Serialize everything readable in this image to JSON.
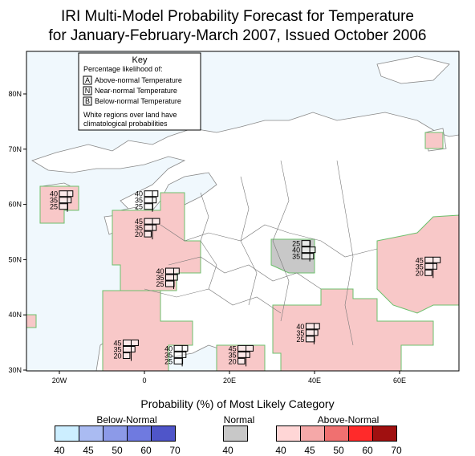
{
  "title_line1": "IRI Multi-Model Probability Forecast for Temperature",
  "title_line2": "for January-February-March 2007, Issued October 2006",
  "key": {
    "heading": "Key",
    "subheading": "Percentage likelihood of:",
    "items": [
      {
        "letter": "A",
        "label": "Above-normal Temperature"
      },
      {
        "letter": "N",
        "label": "Near-normal Temperature"
      },
      {
        "letter": "B",
        "label": "Below-normal Temperature"
      }
    ],
    "note_line1": "White regions over land have",
    "note_line2": "climatological probabilities"
  },
  "lat_labels": [
    {
      "text": "80N",
      "lat": 80
    },
    {
      "text": "70N",
      "lat": 70
    },
    {
      "text": "60N",
      "lat": 60
    },
    {
      "text": "50N",
      "lat": 50
    },
    {
      "text": "40N",
      "lat": 40
    },
    {
      "text": "30N",
      "lat": 30
    }
  ],
  "lon_labels": [
    {
      "text": "20W",
      "lon": -20
    },
    {
      "text": "0",
      "lon": 0
    },
    {
      "text": "20E",
      "lon": 20
    },
    {
      "text": "40E",
      "lon": 40
    },
    {
      "text": "60E",
      "lon": 60
    }
  ],
  "forecast_boxes": [
    {
      "above": "40",
      "near": "35",
      "below": "25",
      "lon": -20,
      "lat": 61
    },
    {
      "above": "40",
      "near": "35",
      "below": "25",
      "lon": 0,
      "lat": 61
    },
    {
      "above": "45",
      "near": "35",
      "below": "20",
      "lon": 0,
      "lat": 56
    },
    {
      "above": "40",
      "near": "35",
      "below": "25",
      "lon": 5,
      "lat": 47
    },
    {
      "above": "25",
      "near": "40",
      "below": "35",
      "lon": 37,
      "lat": 52
    },
    {
      "above": "45",
      "near": "35",
      "below": "20",
      "lon": 66,
      "lat": 49
    },
    {
      "above": "40",
      "near": "35",
      "below": "25",
      "lon": 38,
      "lat": 37
    },
    {
      "above": "45",
      "near": "35",
      "below": "20",
      "lon": -5,
      "lat": 34
    },
    {
      "above": "40",
      "near": "35",
      "below": "25",
      "lon": 7,
      "lat": 33
    },
    {
      "above": "45",
      "near": "35",
      "below": "20",
      "lon": 22,
      "lat": 33
    }
  ],
  "legend": {
    "title": "Probability (%) of Most Likely Category",
    "below_label": "Below-Normal",
    "normal_label": "Normal",
    "above_label": "Above-Normal",
    "below_colors": [
      "#cceeff",
      "#aabbf2",
      "#8c9ae8",
      "#6f7ae0",
      "#4f55c9"
    ],
    "normal_color": "#c8c8c8",
    "above_colors": [
      "#ffd6d6",
      "#f5a8a8",
      "#f07070",
      "#ff2a2a",
      "#a01010"
    ],
    "below_ticks": [
      "40",
      "45",
      "50",
      "60",
      "70"
    ],
    "normal_ticks": [
      "40"
    ],
    "above_ticks": [
      "40",
      "45",
      "50",
      "60",
      "70"
    ]
  }
}
